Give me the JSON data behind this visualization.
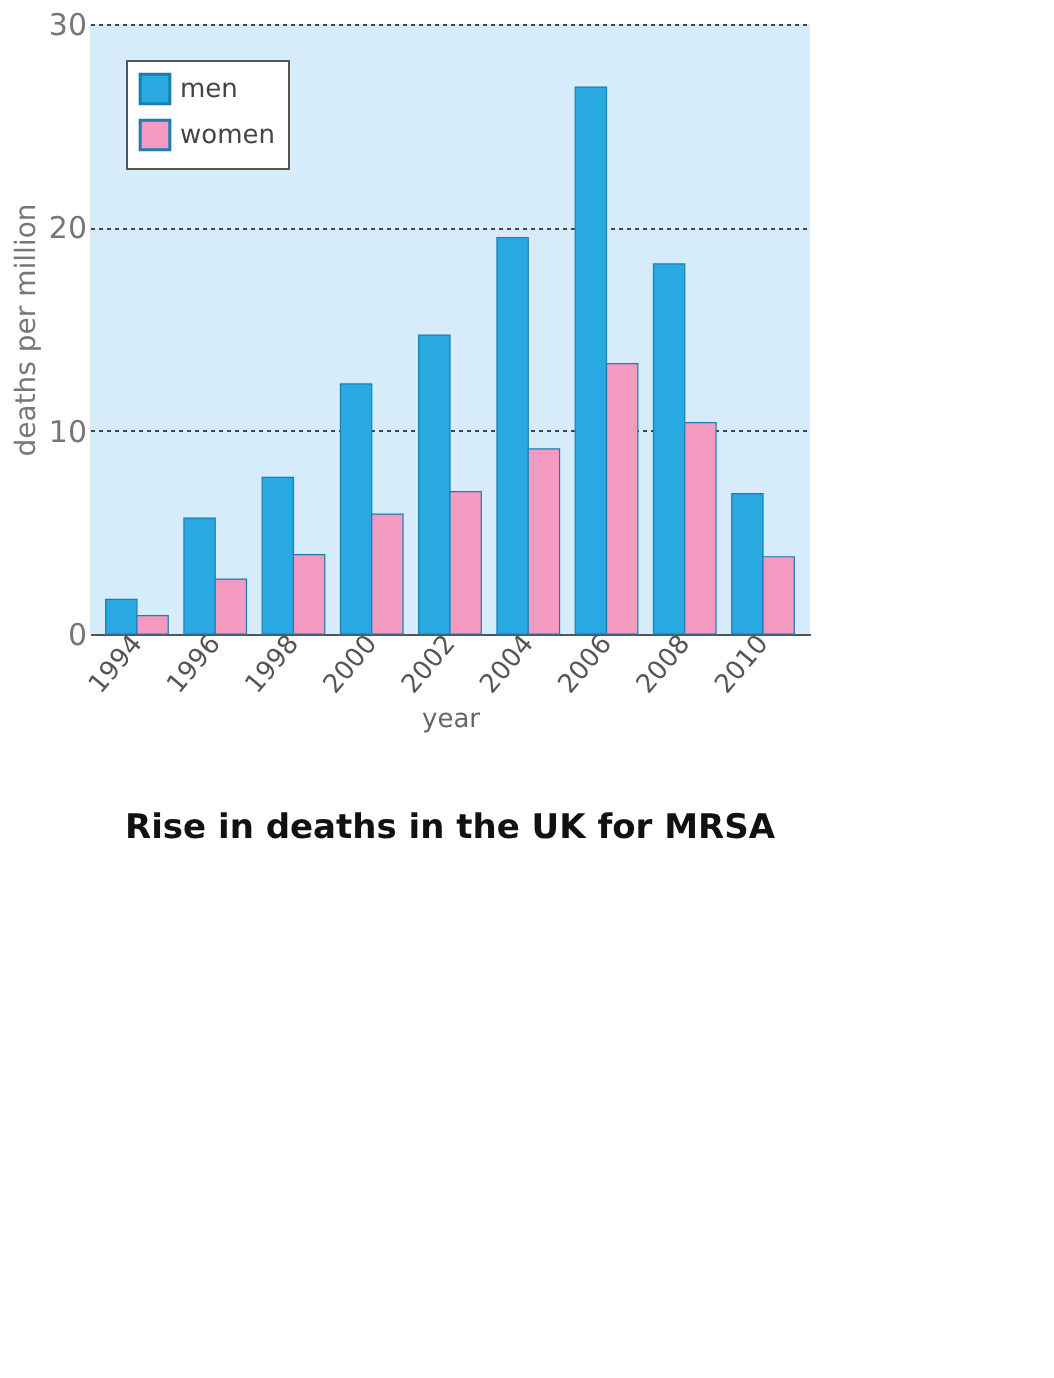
{
  "chart_data": {
    "type": "bar",
    "title": "Rise in deaths in the UK for MRSA",
    "xlabel": "year",
    "ylabel": "deaths per million",
    "categories": [
      "1994",
      "1996",
      "1998",
      "2000",
      "2002",
      "2004",
      "2006",
      "2008",
      "2010"
    ],
    "series": [
      {
        "name": "men",
        "color": "#29a9e1",
        "values": [
          1.7,
          5.7,
          7.7,
          12.3,
          14.7,
          19.5,
          26.9,
          18.2,
          6.9
        ]
      },
      {
        "name": "women",
        "color": "#f29ac0",
        "values": [
          0.9,
          2.7,
          3.9,
          5.9,
          7.0,
          9.1,
          13.3,
          10.4,
          3.8
        ]
      }
    ],
    "ylim": [
      0,
      30
    ],
    "yticks": [
      0,
      10,
      20,
      30
    ],
    "grid": "y",
    "legend": "top left"
  }
}
